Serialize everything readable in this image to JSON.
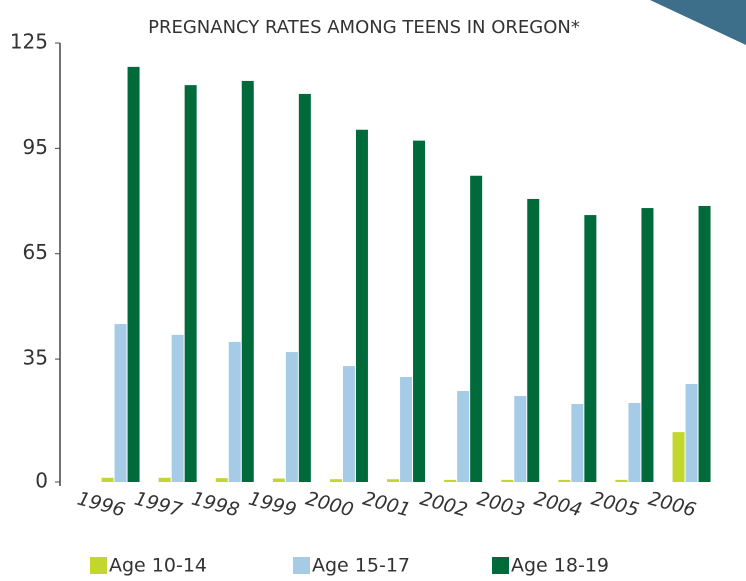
{
  "chart_data": {
    "type": "bar",
    "title": "PREGNANCY RATES AMONG TEENS IN OREGON*",
    "categories": [
      "1996",
      "1997",
      "1998",
      "1999",
      "2000",
      "2001",
      "2002",
      "2003",
      "2004",
      "2005",
      "2006"
    ],
    "series": [
      {
        "name": "Age 10-14",
        "color": "#c2d62e",
        "values": [
          1.2,
          1.2,
          1.1,
          1.0,
          0.8,
          0.8,
          0.6,
          0.6,
          0.6,
          0.6,
          14.2
        ]
      },
      {
        "name": "Age 15-17",
        "color": "#a6cbe6",
        "values": [
          45,
          41.9,
          39.9,
          37,
          33,
          29.9,
          25.9,
          24.5,
          22.2,
          22.5,
          27.9
        ]
      },
      {
        "name": "Age 18-19",
        "color": "#006a3a",
        "values": [
          118.2,
          113,
          114.2,
          110.5,
          100.3,
          97.2,
          87.2,
          80.6,
          76,
          78,
          78.6
        ]
      }
    ],
    "ylim": [
      0,
      125
    ],
    "yticks": [
      0,
      35,
      65,
      95,
      125
    ],
    "grid": false
  }
}
